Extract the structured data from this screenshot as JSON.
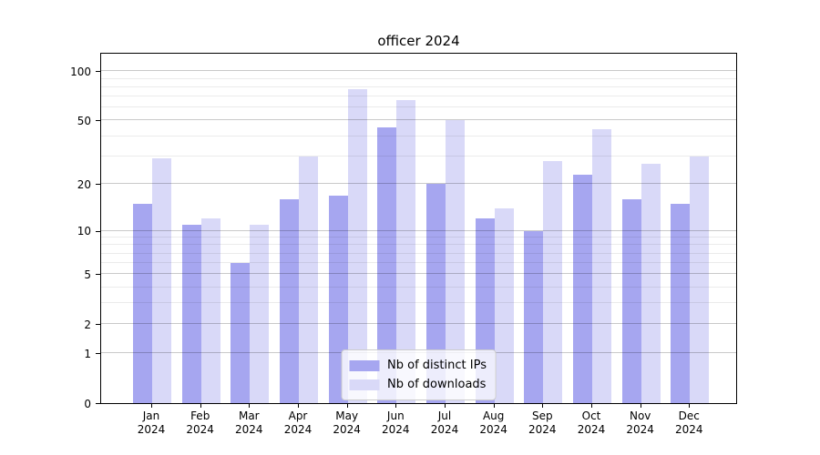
{
  "title": "officer 2024",
  "colors": {
    "distinct_ips_bar": "#a6a6f0",
    "downloads_bar": "#d9d9f8",
    "axis": "#000000",
    "legend_border": "#cccccc"
  },
  "chart_data": {
    "type": "bar",
    "title": "officer 2024",
    "xlabel": "",
    "ylabel": "",
    "yscale": "log1p",
    "grid": true,
    "legend_position": "lower center",
    "categories": [
      "Jan 2024",
      "Feb 2024",
      "Mar 2024",
      "Apr 2024",
      "May 2024",
      "Jun 2024",
      "Jul 2024",
      "Aug 2024",
      "Sep 2024",
      "Oct 2024",
      "Nov 2024",
      "Dec 2024"
    ],
    "series": [
      {
        "name": "Nb of distinct IPs",
        "color_key": "distinct_ips_bar",
        "values": [
          15,
          11,
          6,
          16,
          17,
          45,
          20,
          12,
          10,
          23,
          16,
          15
        ]
      },
      {
        "name": "Nb of downloads",
        "color_key": "downloads_bar",
        "values": [
          29,
          12,
          11,
          30,
          78,
          67,
          50,
          14,
          28,
          44,
          27,
          30
        ]
      }
    ],
    "yticks": [
      0,
      1,
      2,
      5,
      10,
      20,
      50,
      100
    ],
    "y_minor_gridlines": [
      3,
      4,
      6,
      7,
      8,
      9,
      30,
      40,
      60,
      70,
      80,
      90
    ],
    "ylim": [
      0,
      132
    ]
  }
}
